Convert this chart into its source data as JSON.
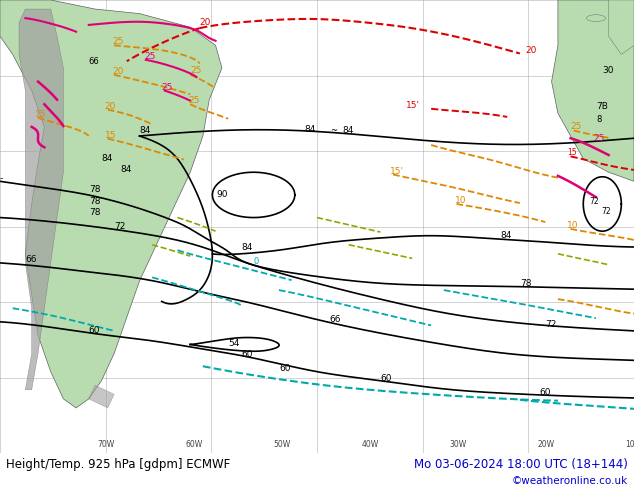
{
  "title_left": "Height/Temp. 925 hPa [gdpm] ECMWF",
  "title_right": "Mo 03-06-2024 18:00 UTC (18+144)",
  "copyright": "©weatheronline.co.uk",
  "bg_color": "#d8e8d8",
  "ocean_color": "#c8d8e8",
  "land_color": "#b8dcb0",
  "mountain_color": "#a0a0a0",
  "grid_color": "#a0a0a0",
  "border_color": "#606060",
  "fig_width": 6.34,
  "fig_height": 4.9,
  "dpi": 100,
  "title_fontsize": 8.5,
  "copyright_fontsize": 7.5,
  "black": "#000000",
  "red": "#dd0000",
  "orange": "#dd8800",
  "cyan": "#00aaaa",
  "pink": "#dd0077",
  "green": "#88aa00",
  "blue": "#0000cc"
}
